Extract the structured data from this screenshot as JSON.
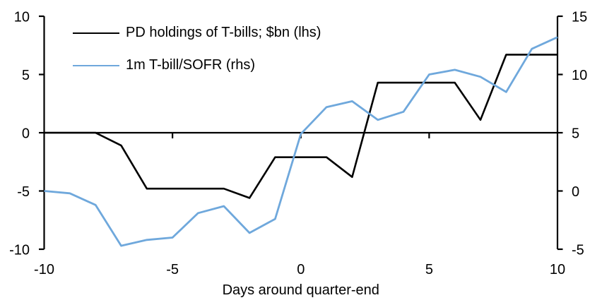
{
  "chart_data": {
    "type": "line",
    "title": "",
    "x": [
      -10,
      -9,
      -8,
      -7,
      -6,
      -5,
      -4,
      -3,
      -2,
      -1,
      0,
      1,
      2,
      3,
      4,
      5,
      6,
      7,
      8,
      9,
      10
    ],
    "series": [
      {
        "name": "PD holdings of T-bills; $bn (lhs)",
        "axis": "lhs",
        "color": "#000000",
        "values": [
          0,
          0,
          0,
          -1.1,
          -4.8,
          -4.8,
          -4.8,
          -4.8,
          -5.6,
          -2.1,
          -2.1,
          -2.1,
          -3.8,
          4.3,
          4.3,
          4.3,
          4.3,
          1.1,
          6.7,
          6.7,
          6.7
        ]
      },
      {
        "name": "1m T-bill/SOFR (rhs)",
        "axis": "rhs",
        "color": "#6fa8dc",
        "values": [
          0,
          -0.2,
          -1.2,
          -4.7,
          -4.2,
          -4.0,
          -1.9,
          -1.3,
          -3.6,
          -2.4,
          4.9,
          7.2,
          7.7,
          6.1,
          6.8,
          10.0,
          10.4,
          9.8,
          8.5,
          12.2,
          13.2
        ]
      }
    ],
    "x_axis": {
      "label": "Days around quarter-end",
      "min": -10,
      "max": 10,
      "ticks": [
        -10,
        -5,
        0,
        5,
        10
      ]
    },
    "left_axis": {
      "min": -10,
      "max": 10,
      "ticks": [
        10,
        5,
        0,
        -5,
        -10
      ]
    },
    "right_axis": {
      "min": -5,
      "max": 15,
      "ticks": [
        15,
        10,
        5,
        0,
        -5
      ]
    },
    "legend_position": "top-left",
    "grid": false,
    "zero_line": true,
    "background": "#ffffff"
  },
  "colors": {
    "axis": "#000000",
    "text": "#000000",
    "series_black": "#000000",
    "series_blue": "#6fa8dc",
    "background": "#ffffff"
  }
}
